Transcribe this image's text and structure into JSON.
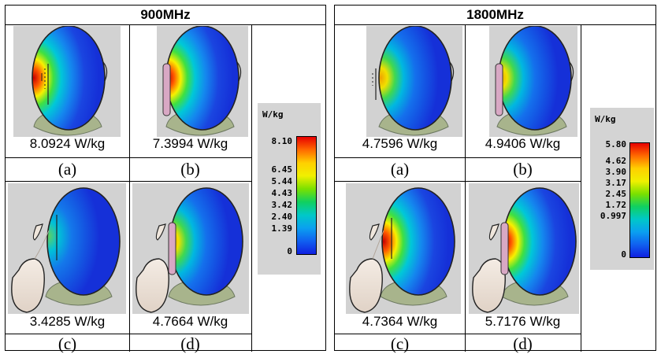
{
  "panels": [
    {
      "title": "900MHz",
      "cells": [
        {
          "sar": "8.0924 W/kg",
          "label": "(a)"
        },
        {
          "sar": "7.3994 W/kg",
          "label": "(b)"
        },
        {
          "sar": "3.4285 W/kg",
          "label": "(c)"
        },
        {
          "sar": "4.7664 W/kg",
          "label": "(d)"
        }
      ],
      "legend": {
        "unit": "W/kg",
        "ticks": [
          "8.10",
          "6.45",
          "5.44",
          "4.43",
          "3.42",
          "2.40",
          "1.39",
          "0"
        ]
      }
    },
    {
      "title": "1800MHz",
      "cells": [
        {
          "sar": "4.7596 W/kg",
          "label": "(a)"
        },
        {
          "sar": "4.9406 W/kg",
          "label": "(b)"
        },
        {
          "sar": "4.7364 W/kg",
          "label": "(c)"
        },
        {
          "sar": "5.7176 W/kg",
          "label": "(d)"
        }
      ],
      "legend": {
        "unit": "W/kg",
        "ticks": [
          "5.80",
          "4.62",
          "3.90",
          "3.17",
          "2.45",
          "1.72",
          "0.997",
          "0"
        ]
      }
    }
  ],
  "colors": {
    "field_blue": "#1530d8",
    "hotspot": "#e02010",
    "phone": "#d8a8c4",
    "background": "#d2d2d2"
  }
}
